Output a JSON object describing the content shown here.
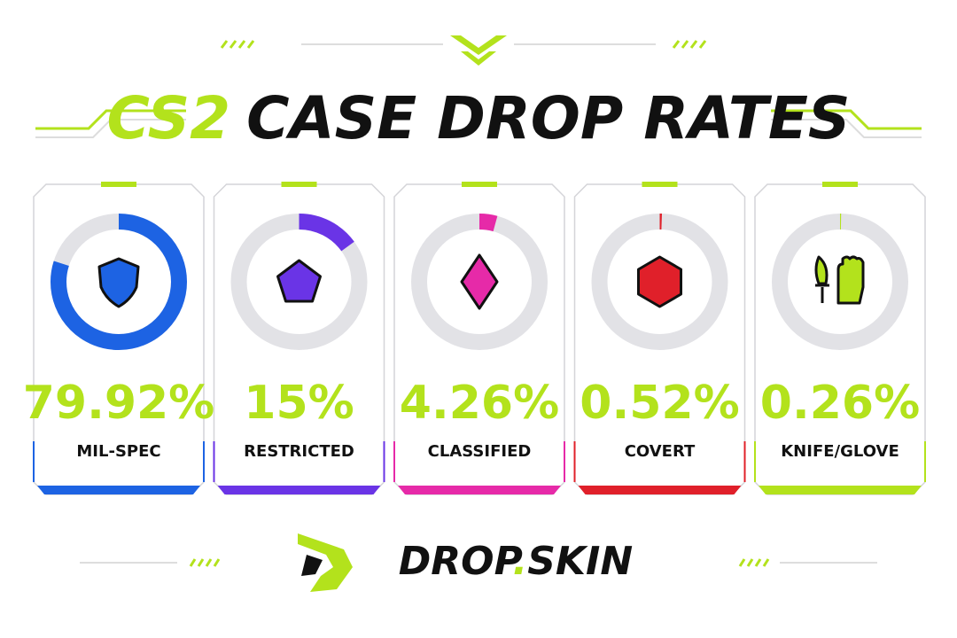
{
  "title": [
    "CS2",
    "CASE DROP RATES"
  ],
  "brand": [
    "DROP",
    ".",
    "SKIN"
  ],
  "chart_data": [
    {
      "type": "donut",
      "categories": [
        "MIL-SPEC"
      ],
      "values": [
        79.92
      ],
      "value_labels": [
        "79.92%"
      ],
      "color": "#1d63e3"
    },
    {
      "type": "donut",
      "categories": [
        "RESTRICTED"
      ],
      "values": [
        15
      ],
      "value_labels": [
        "15%"
      ],
      "color": "#6a34e6"
    },
    {
      "type": "donut",
      "categories": [
        "CLASSIFIED"
      ],
      "values": [
        4.26
      ],
      "value_labels": [
        "4.26%"
      ],
      "color": "#e62aa8"
    },
    {
      "type": "donut",
      "categories": [
        "COVERT"
      ],
      "values": [
        0.52
      ],
      "value_labels": [
        "0.52%"
      ],
      "color": "#e0202a"
    },
    {
      "type": "donut",
      "categories": [
        "KNIFE/GLOVE"
      ],
      "values": [
        0.26
      ],
      "value_labels": [
        "0.26%"
      ],
      "color": "#b3e21c"
    }
  ]
}
